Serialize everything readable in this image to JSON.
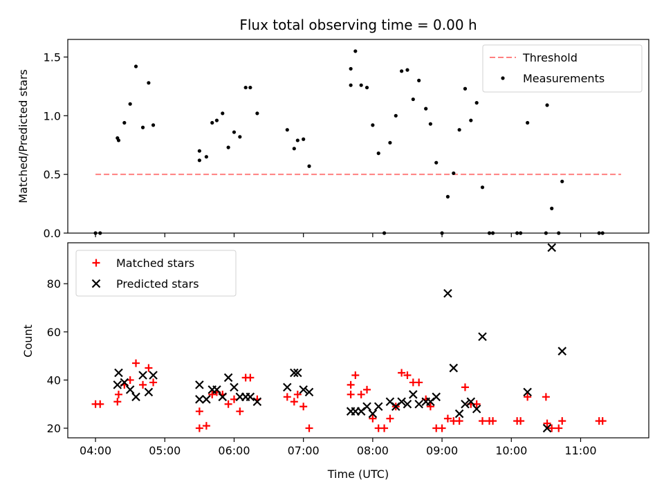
{
  "chart_data": [
    {
      "type": "scatter",
      "title": "Flux total observing time = 0.00 h",
      "xlabel": "",
      "ylabel": "Matched/Predicted stars",
      "xlim": [
        "03:36",
        "11:59"
      ],
      "ylim": [
        0,
        1.65
      ],
      "yticks": [
        "0.0",
        "0.5",
        "1.0",
        "1.5"
      ],
      "legend_placement": "top-right",
      "threshold": {
        "name": "Threshold",
        "value": 0.5,
        "x_range": [
          "04:00",
          "11:35"
        ],
        "color": "#ff7f7f"
      },
      "series": [
        {
          "name": "Measurements",
          "color": "#000000",
          "marker": "dot",
          "points": [
            [
              "04:00",
              0.0
            ],
            [
              "04:04",
              0.0
            ],
            [
              "04:19",
              0.81
            ],
            [
              "04:20",
              0.79
            ],
            [
              "04:25",
              0.94
            ],
            [
              "04:30",
              1.1
            ],
            [
              "04:35",
              1.42
            ],
            [
              "04:41",
              0.9
            ],
            [
              "04:46",
              1.28
            ],
            [
              "04:50",
              0.92
            ],
            [
              "05:30",
              0.62
            ],
            [
              "05:30",
              0.7
            ],
            [
              "05:36",
              0.65
            ],
            [
              "05:41",
              0.94
            ],
            [
              "05:45",
              0.96
            ],
            [
              "05:50",
              1.02
            ],
            [
              "05:55",
              0.73
            ],
            [
              "06:00",
              0.86
            ],
            [
              "06:05",
              0.82
            ],
            [
              "06:10",
              1.24
            ],
            [
              "06:14",
              1.24
            ],
            [
              "06:20",
              1.02
            ],
            [
              "06:46",
              0.88
            ],
            [
              "06:52",
              0.72
            ],
            [
              "06:55",
              0.79
            ],
            [
              "07:00",
              0.8
            ],
            [
              "07:05",
              0.57
            ],
            [
              "07:41",
              1.4
            ],
            [
              "07:41",
              1.26
            ],
            [
              "07:45",
              1.55
            ],
            [
              "07:50",
              1.26
            ],
            [
              "07:55",
              1.24
            ],
            [
              "08:00",
              0.92
            ],
            [
              "08:05",
              0.68
            ],
            [
              "08:10",
              0.0
            ],
            [
              "08:15",
              0.77
            ],
            [
              "08:20",
              1.0
            ],
            [
              "08:25",
              1.38
            ],
            [
              "08:30",
              1.39
            ],
            [
              "08:35",
              1.14
            ],
            [
              "08:40",
              1.3
            ],
            [
              "08:46",
              1.06
            ],
            [
              "08:50",
              0.93
            ],
            [
              "08:55",
              0.6
            ],
            [
              "09:00",
              0.0
            ],
            [
              "09:05",
              0.31
            ],
            [
              "09:10",
              0.51
            ],
            [
              "09:15",
              0.88
            ],
            [
              "09:20",
              1.23
            ],
            [
              "09:25",
              0.96
            ],
            [
              "09:30",
              1.11
            ],
            [
              "09:35",
              0.39
            ],
            [
              "09:41",
              0.0
            ],
            [
              "09:44",
              0.0
            ],
            [
              "10:05",
              0.0
            ],
            [
              "10:08",
              0.0
            ],
            [
              "10:14",
              0.94
            ],
            [
              "10:30",
              0.0
            ],
            [
              "10:31",
              1.09
            ],
            [
              "10:35",
              0.21
            ],
            [
              "10:41",
              0.0
            ],
            [
              "10:44",
              0.44
            ],
            [
              "11:16",
              0.0
            ],
            [
              "11:19",
              0.0
            ]
          ]
        }
      ]
    },
    {
      "type": "scatter",
      "title": "",
      "xlabel": "Time (UTC)",
      "ylabel": "Count",
      "xlim": [
        "03:36",
        "11:59"
      ],
      "ylim": [
        16,
        97
      ],
      "xticks": [
        "04:00",
        "05:00",
        "06:00",
        "07:00",
        "08:00",
        "09:00",
        "10:00",
        "11:00"
      ],
      "yticks": [
        "20",
        "40",
        "60",
        "80"
      ],
      "legend_placement": "top-left",
      "series": [
        {
          "name": "Matched stars",
          "color": "#ff0000",
          "marker": "plus",
          "points": [
            [
              "04:00",
              30
            ],
            [
              "04:04",
              30
            ],
            [
              "04:19",
              31
            ],
            [
              "04:20",
              34
            ],
            [
              "04:25",
              38
            ],
            [
              "04:30",
              40
            ],
            [
              "04:35",
              47
            ],
            [
              "04:41",
              38
            ],
            [
              "04:46",
              45
            ],
            [
              "04:50",
              39
            ],
            [
              "05:30",
              20
            ],
            [
              "05:30",
              27
            ],
            [
              "05:36",
              21
            ],
            [
              "05:41",
              34
            ],
            [
              "05:45",
              35
            ],
            [
              "05:50",
              34
            ],
            [
              "05:55",
              30
            ],
            [
              "06:00",
              32
            ],
            [
              "06:05",
              27
            ],
            [
              "06:10",
              41
            ],
            [
              "06:14",
              41
            ],
            [
              "06:20",
              32
            ],
            [
              "06:46",
              33
            ],
            [
              "06:52",
              31
            ],
            [
              "06:55",
              34
            ],
            [
              "07:00",
              29
            ],
            [
              "07:05",
              20
            ],
            [
              "07:41",
              38
            ],
            [
              "07:41",
              34
            ],
            [
              "07:45",
              42
            ],
            [
              "07:50",
              34
            ],
            [
              "07:55",
              36
            ],
            [
              "08:00",
              24
            ],
            [
              "08:05",
              20
            ],
            [
              "08:10",
              20
            ],
            [
              "08:15",
              24
            ],
            [
              "08:20",
              29
            ],
            [
              "08:25",
              43
            ],
            [
              "08:30",
              42
            ],
            [
              "08:35",
              39
            ],
            [
              "08:40",
              39
            ],
            [
              "08:46",
              32
            ],
            [
              "08:50",
              29
            ],
            [
              "08:55",
              20
            ],
            [
              "09:00",
              20
            ],
            [
              "09:05",
              24
            ],
            [
              "09:10",
              23
            ],
            [
              "09:15",
              23
            ],
            [
              "09:20",
              37
            ],
            [
              "09:25",
              30
            ],
            [
              "09:30",
              30
            ],
            [
              "09:35",
              23
            ],
            [
              "09:41",
              23
            ],
            [
              "09:44",
              23
            ],
            [
              "10:05",
              23
            ],
            [
              "10:08",
              23
            ],
            [
              "10:14",
              33
            ],
            [
              "10:30",
              33
            ],
            [
              "10:31",
              22
            ],
            [
              "10:35",
              20
            ],
            [
              "10:41",
              20
            ],
            [
              "10:44",
              23
            ],
            [
              "11:16",
              23
            ],
            [
              "11:19",
              23
            ]
          ]
        },
        {
          "name": "Predicted stars",
          "color": "#000000",
          "marker": "x",
          "points": [
            [
              "04:19",
              38
            ],
            [
              "04:20",
              43
            ],
            [
              "04:25",
              39
            ],
            [
              "04:30",
              36
            ],
            [
              "04:35",
              33
            ],
            [
              "04:41",
              42
            ],
            [
              "04:46",
              35
            ],
            [
              "04:50",
              42
            ],
            [
              "05:30",
              32
            ],
            [
              "05:30",
              38
            ],
            [
              "05:36",
              32
            ],
            [
              "05:41",
              36
            ],
            [
              "05:45",
              36
            ],
            [
              "05:50",
              33
            ],
            [
              "05:55",
              41
            ],
            [
              "06:00",
              37
            ],
            [
              "06:05",
              33
            ],
            [
              "06:10",
              33
            ],
            [
              "06:14",
              33
            ],
            [
              "06:20",
              31
            ],
            [
              "06:46",
              37
            ],
            [
              "06:52",
              43
            ],
            [
              "06:55",
              43
            ],
            [
              "07:00",
              36
            ],
            [
              "07:05",
              35
            ],
            [
              "07:41",
              27
            ],
            [
              "07:45",
              27
            ],
            [
              "07:50",
              27
            ],
            [
              "07:55",
              29
            ],
            [
              "08:00",
              26
            ],
            [
              "08:05",
              29
            ],
            [
              "08:15",
              31
            ],
            [
              "08:20",
              29
            ],
            [
              "08:25",
              31
            ],
            [
              "08:30",
              30
            ],
            [
              "08:35",
              34
            ],
            [
              "08:40",
              30
            ],
            [
              "08:46",
              31
            ],
            [
              "08:50",
              31
            ],
            [
              "08:55",
              33
            ],
            [
              "09:05",
              76
            ],
            [
              "09:10",
              45
            ],
            [
              "09:15",
              26
            ],
            [
              "09:20",
              30
            ],
            [
              "09:25",
              31
            ],
            [
              "09:30",
              28
            ],
            [
              "09:35",
              58
            ],
            [
              "10:14",
              35
            ],
            [
              "10:31",
              20
            ],
            [
              "10:35",
              95
            ],
            [
              "10:44",
              52
            ]
          ]
        }
      ]
    }
  ]
}
